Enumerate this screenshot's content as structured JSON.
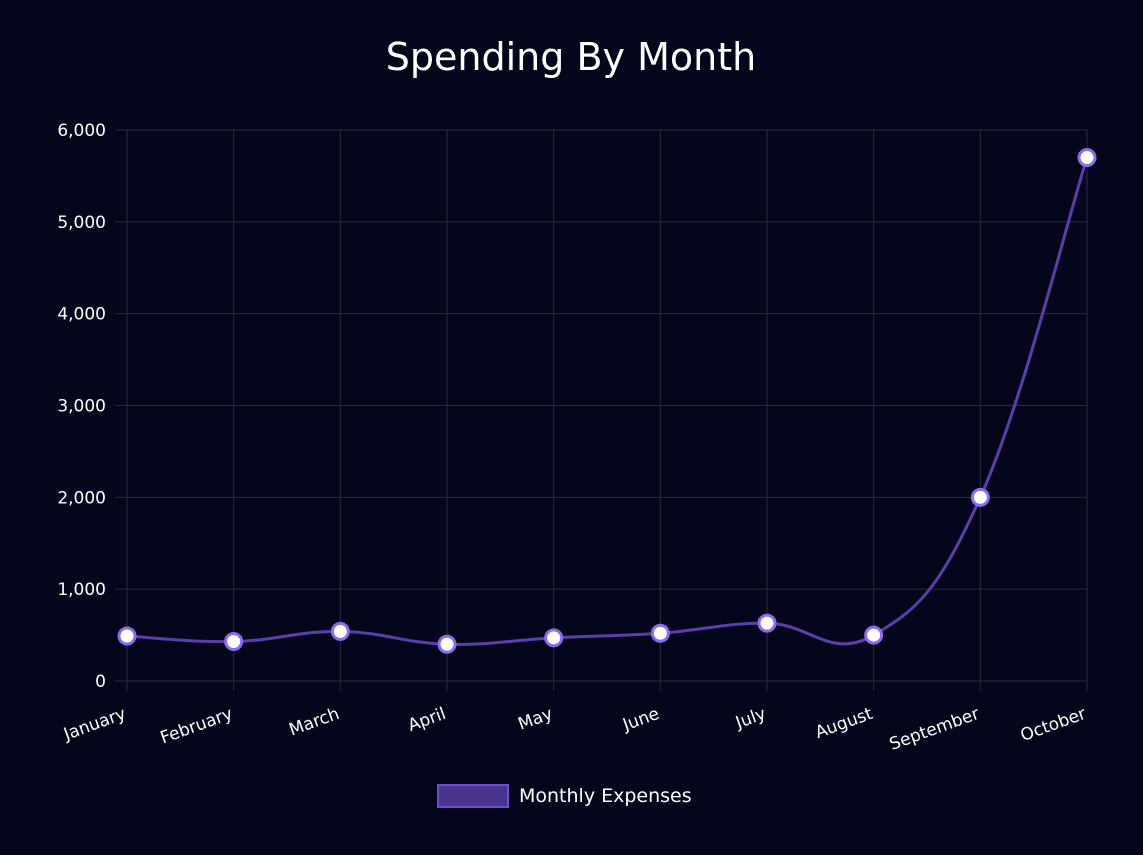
{
  "chart_data": {
    "type": "line",
    "title": "Spending By Month",
    "xlabel": "",
    "ylabel": "",
    "categories": [
      "January",
      "February",
      "March",
      "April",
      "May",
      "June",
      "July",
      "August",
      "September",
      "October"
    ],
    "series": [
      {
        "name": "Monthly Expenses",
        "values": [
          490,
          430,
          540,
          400,
          470,
          520,
          630,
          500,
          2000,
          5700
        ]
      }
    ],
    "ylim": [
      0,
      6000
    ],
    "yticks": [
      "0",
      "1,000",
      "2,000",
      "3,000",
      "4,000",
      "5,000",
      "6,000"
    ],
    "grid": true,
    "legend_position": "bottom",
    "colors": {
      "background": "#04061c",
      "line": "#5a3fa8",
      "point_fill": "#ffffff",
      "point_border": "#8b6cf0",
      "legend_fill": "#4a3490",
      "legend_border": "#6b4fd0",
      "grid": "#2a2d44",
      "text": "#ffffff"
    }
  }
}
